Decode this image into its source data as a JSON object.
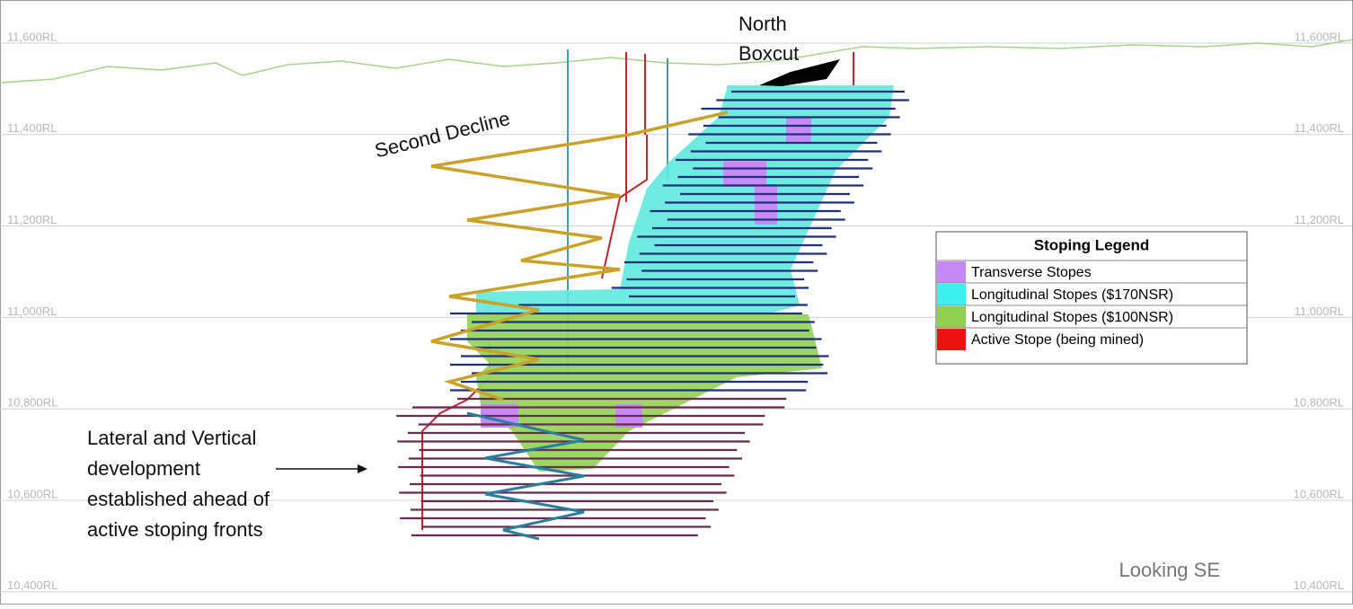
{
  "levels": [
    "11,600RL",
    "11,400RL",
    "11,200RL",
    "11,000RL",
    "10,800RL",
    "10,600RL",
    "10,400RL"
  ],
  "annotations": {
    "north_boxcut": [
      "North",
      "Boxcut"
    ],
    "second_decline": "Second Decline",
    "development": [
      "Lateral and Vertical",
      "development",
      "established ahead of",
      "active stoping fronts"
    ],
    "view": "Looking SE"
  },
  "legend": {
    "title": "Stoping Legend",
    "items": [
      {
        "label": "Transverse Stopes",
        "color": "#c58af5"
      },
      {
        "label": "Longitudinal Stopes ($170NSR)",
        "color": "#3ff0f0"
      },
      {
        "label": "Longitudinal Stopes ($100NSR)",
        "color": "#8fd14f"
      },
      {
        "label": "Active Stope (being mined)",
        "color": "#ee1111"
      }
    ]
  }
}
